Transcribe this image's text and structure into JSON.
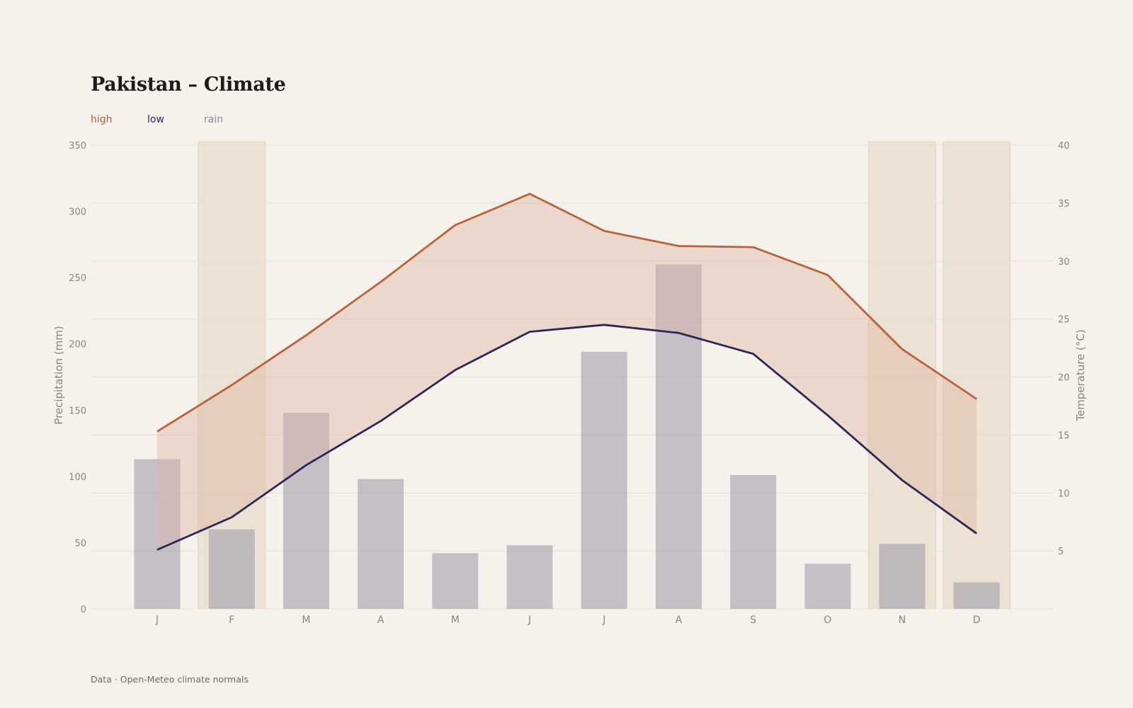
{
  "title": "Pakistan – Climate",
  "legend": {
    "high": "high",
    "low": "low",
    "rain": "rain"
  },
  "source": "Data · Open-Meteo climate normals",
  "colors": {
    "high": "#b8623e",
    "low": "#2b2858",
    "rain": "#9a97a8",
    "band": "#dcb2a0",
    "highlight": "#e8dccb",
    "grid": "#e6ded2"
  },
  "chart_data": {
    "type": "bar+line",
    "categories": [
      "J",
      "F",
      "M",
      "A",
      "M",
      "J",
      "J",
      "A",
      "S",
      "O",
      "N",
      "D"
    ],
    "series": [
      {
        "name": "high",
        "kind": "line",
        "axis": "right",
        "values": [
          15.3,
          19.3,
          23.6,
          28.2,
          33.1,
          35.8,
          32.6,
          31.3,
          31.2,
          28.8,
          22.4,
          18.1
        ]
      },
      {
        "name": "low",
        "kind": "line",
        "axis": "right",
        "values": [
          5.1,
          7.9,
          12.4,
          16.2,
          20.6,
          23.9,
          24.5,
          23.8,
          22.0,
          16.7,
          11.1,
          6.5
        ]
      },
      {
        "name": "rain",
        "kind": "bar",
        "axis": "left",
        "values": [
          113,
          60,
          148,
          98,
          42,
          48,
          194,
          260,
          101,
          34,
          49,
          20
        ]
      }
    ],
    "highlighted_categories": [
      1,
      10,
      11
    ],
    "ylabel_left": "Precipitation (mm)",
    "ylabel_right": "Temperature (°C)",
    "ylim_left": [
      0,
      350
    ],
    "yticks_left": [
      0,
      50,
      100,
      150,
      200,
      250,
      300,
      350
    ],
    "ylim_right": [
      0,
      40
    ],
    "yticks_right": [
      5,
      10,
      15,
      20,
      25,
      30,
      35,
      40
    ],
    "grid": true,
    "legend_position": "top-left"
  }
}
